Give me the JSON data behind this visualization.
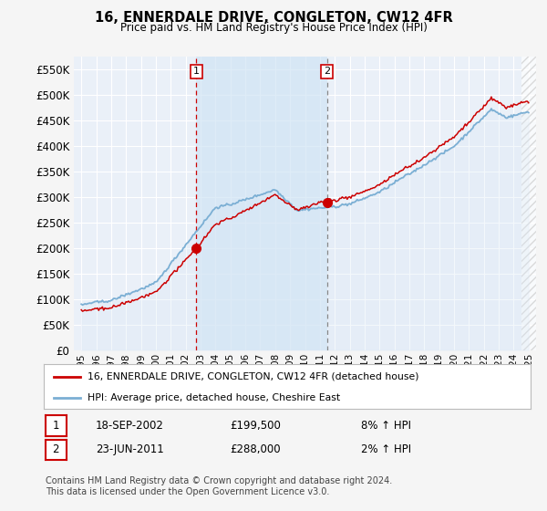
{
  "title": "16, ENNERDALE DRIVE, CONGLETON, CW12 4FR",
  "subtitle": "Price paid vs. HM Land Registry's House Price Index (HPI)",
  "legend_line1": "16, ENNERDALE DRIVE, CONGLETON, CW12 4FR (detached house)",
  "legend_line2": "HPI: Average price, detached house, Cheshire East",
  "sale1_date": "18-SEP-2002",
  "sale1_price": "£199,500",
  "sale1_hpi": "8% ↑ HPI",
  "sale1_year": 2002.72,
  "sale1_value": 199500,
  "sale2_date": "23-JUN-2011",
  "sale2_price": "£288,000",
  "sale2_hpi": "2% ↑ HPI",
  "sale2_year": 2011.47,
  "sale2_value": 288000,
  "hpi_color": "#7bafd4",
  "hpi_fill_color": "#dae8f5",
  "price_color": "#cc0000",
  "marker_color": "#cc0000",
  "background_color": "#f5f5f5",
  "plot_bg_color": "#eaf0f8",
  "grid_color": "#ffffff",
  "shade_between_color": "#d0e4f5",
  "ylim": [
    0,
    575000
  ],
  "yticks": [
    0,
    50000,
    100000,
    150000,
    200000,
    250000,
    300000,
    350000,
    400000,
    450000,
    500000,
    550000
  ],
  "xlim_start": 1994.5,
  "xlim_end": 2025.5,
  "footer": "Contains HM Land Registry data © Crown copyright and database right 2024.\nThis data is licensed under the Open Government Licence v3.0."
}
